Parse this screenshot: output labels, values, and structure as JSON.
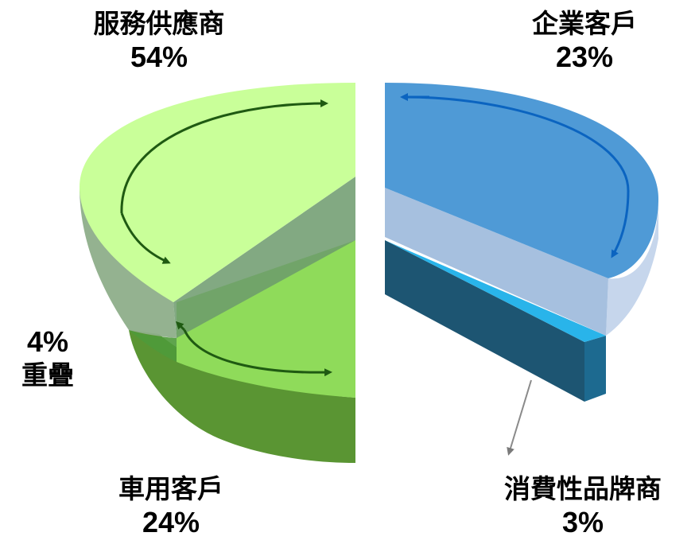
{
  "chart_data": {
    "type": "pie",
    "title": "",
    "slices": [
      {
        "key": "provider",
        "label": "服務供應商",
        "percent": "54%",
        "value": 54,
        "color": "#c9ff99"
      },
      {
        "key": "enterprise",
        "label": "企業客戶",
        "percent": "23%",
        "value": 23,
        "color": "#4f9ad6"
      },
      {
        "key": "vehicle",
        "label": "車用客戶",
        "percent": "24%",
        "value": 24,
        "color": "#8fdb5a"
      },
      {
        "key": "consumer",
        "label": "消費性品牌商",
        "percent": "3%",
        "value": 3,
        "color": "#29b4ea"
      }
    ],
    "overlap": {
      "label": "重疊",
      "percent": "4%",
      "value": 4,
      "between": [
        "服務供應商",
        "車用客戶"
      ]
    }
  }
}
